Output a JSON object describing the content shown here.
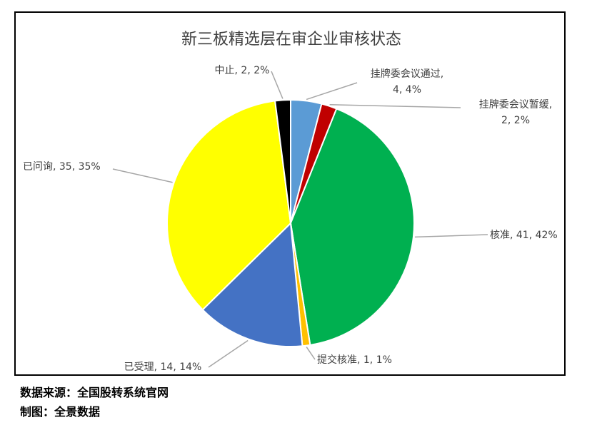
{
  "chart_data": {
    "type": "pie",
    "title": "新三板精选层在审企业审核状态",
    "slices": [
      {
        "name": "挂牌委会议通过",
        "value": 4,
        "percent": "4%",
        "color": "#5B9BD5",
        "label_lines": [
          "挂牌委会议通过,",
          "4, 4%"
        ]
      },
      {
        "name": "挂牌委会议暂缓",
        "value": 2,
        "percent": "2%",
        "color": "#C00000",
        "label_lines": [
          "挂牌委会议暂缓,",
          "2, 2%"
        ]
      },
      {
        "name": "核准",
        "value": 41,
        "percent": "42%",
        "color": "#00B050",
        "label_lines": [
          "核准, 41, 42%"
        ]
      },
      {
        "name": "提交核准",
        "value": 1,
        "percent": "1%",
        "color": "#FFC000",
        "label_lines": [
          "提交核准, 1, 1%"
        ]
      },
      {
        "name": "已受理",
        "value": 14,
        "percent": "14%",
        "color": "#4472C4",
        "label_lines": [
          "已受理, 14, 14%"
        ]
      },
      {
        "name": "已问询",
        "value": 35,
        "percent": "35%",
        "color": "#FFFF00",
        "label_lines": [
          "已问询, 35, 35%"
        ]
      },
      {
        "name": "中止",
        "value": 2,
        "percent": "2%",
        "color": "#000000",
        "label_lines": [
          "中止, 2, 2%"
        ]
      }
    ]
  },
  "footer": {
    "source": "数据来源：全国股转系统官网",
    "author": "制图：全景数据"
  }
}
